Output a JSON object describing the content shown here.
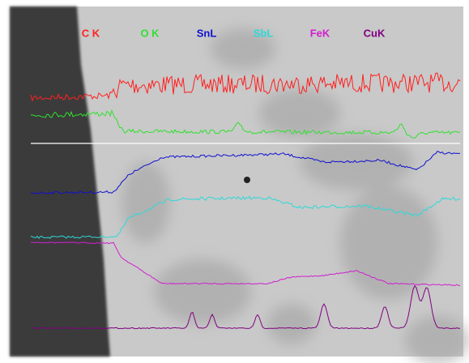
{
  "legend": {
    "labels": [
      "C K",
      "O K",
      "SnL",
      "SbL",
      "FeK",
      "CuK"
    ]
  }
}
